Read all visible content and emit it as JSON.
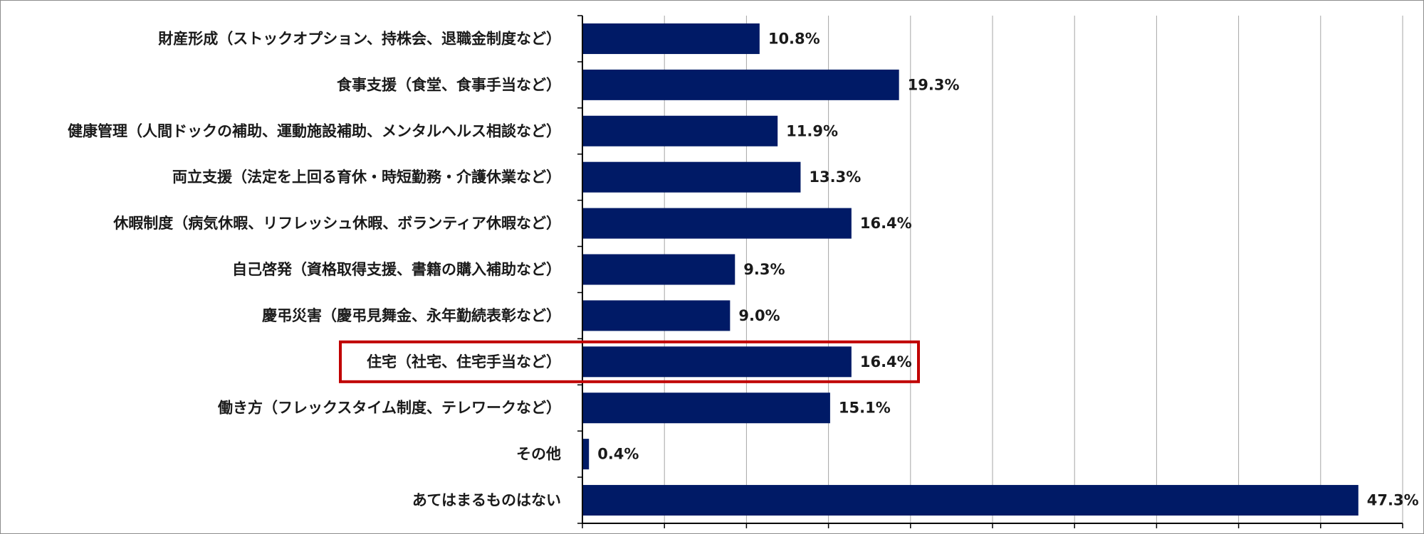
{
  "chart_data": {
    "type": "bar",
    "orientation": "horizontal",
    "title": "",
    "xlabel": "",
    "ylabel": "",
    "categories": [
      "財産形成（ストックオプション、持株会、退職金制度など）",
      "食事支援（食堂、食事手当など）",
      "健康管理（人間ドックの補助、運動施設補助、メンタルヘルス相談など）",
      "両立支援（法定を上回る育休・時短勤務・介護休業など）",
      "休暇制度（病気休暇、リフレッシュ休暇、ボランティア休暇など）",
      "自己啓発（資格取得支援、書籍の購入補助など）",
      "慶弔災害（慶弔見舞金、永年勤続表彰など）",
      "住宅（社宅、住宅手当など）",
      "働き方（フレックスタイム制度、テレワークなど）",
      "その他",
      "あてはまるものはない"
    ],
    "values": [
      10.8,
      19.3,
      11.9,
      13.3,
      16.4,
      9.3,
      9.0,
      16.4,
      15.1,
      0.4,
      47.3
    ],
    "value_labels": [
      "10.8%",
      "19.3%",
      "11.9%",
      "13.3%",
      "16.4%",
      "9.3%",
      "9.0%",
      "16.4%",
      "15.1%",
      "0.4%",
      "47.3%"
    ],
    "xlim": [
      0,
      50
    ],
    "major_step": 5,
    "grid": true,
    "legend": "none",
    "highlighted_category": "住宅（社宅、住宅手当など）",
    "bar_color": "#001a66",
    "highlight_color": "#c00000",
    "grid_color": "#a6a6a6"
  }
}
